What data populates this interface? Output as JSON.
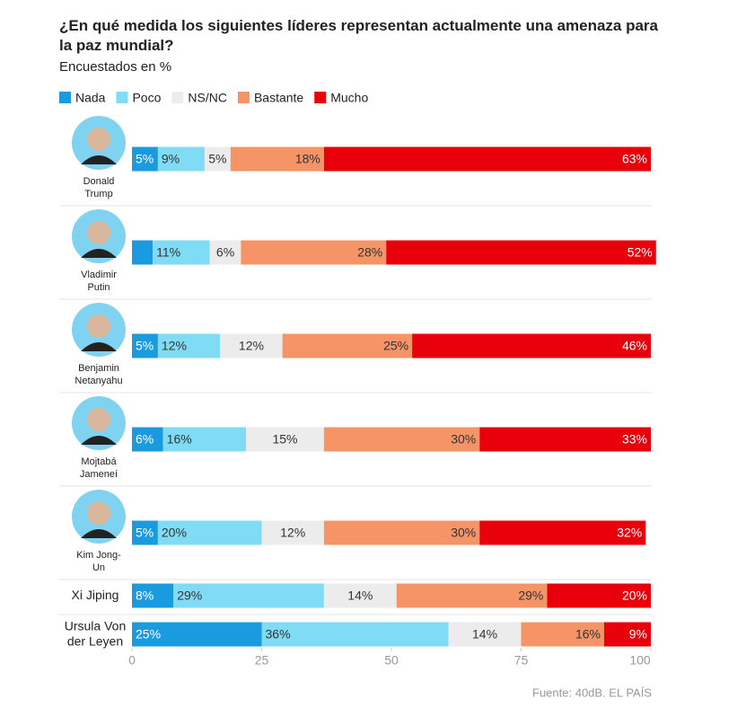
{
  "chart_data": {
    "type": "stacked-bar-horizontal",
    "title": "¿En qué medida los siguientes líderes representan actualmente una amenaza para la paz mundial?",
    "subtitle": "Encuestados en %",
    "source": "Fuente: 40dB. EL PAÍS",
    "categories": [
      "Donald\nTrump",
      "Vladimir\nPutin",
      "Benjamin\nNetanyahu",
      "Mojtabá\nJameneí",
      "Kim Jong-\nUn",
      "Xi Jiping",
      "Ursula Von\nder Leyen"
    ],
    "series": [
      {
        "name": "Nada",
        "color": "#1a9be0",
        "values": [
          5,
          4,
          5,
          6,
          5,
          8,
          25
        ],
        "value_labels": [
          "5%",
          null,
          "5%",
          "6%",
          "5%",
          "8%",
          "25%"
        ]
      },
      {
        "name": "Poco",
        "color": "#80dbf5",
        "values": [
          9,
          11,
          12,
          16,
          20,
          29,
          36
        ],
        "value_labels": [
          "9%",
          "11%",
          "12%",
          "16%",
          "20%",
          "29%",
          "36%"
        ]
      },
      {
        "name": "NS/NC",
        "color": "#ececec",
        "values": [
          5,
          6,
          12,
          15,
          12,
          14,
          14
        ],
        "value_labels": [
          "5%",
          "6%",
          "12%",
          "15%",
          "12%",
          "14%",
          "14%"
        ]
      },
      {
        "name": "Bastante",
        "color": "#f59467",
        "values": [
          18,
          28,
          25,
          30,
          30,
          29,
          16
        ],
        "value_labels": [
          "18%",
          "28%",
          "25%",
          "30%",
          "30%",
          "29%",
          "16%"
        ]
      },
      {
        "name": "Mucho",
        "color": "#e8000b",
        "values": [
          63,
          52,
          46,
          33,
          32,
          20,
          9
        ],
        "value_labels": [
          "63%",
          "52%",
          "46%",
          "33%",
          "32%",
          "20%",
          "9%"
        ]
      }
    ],
    "xlim": [
      0,
      100
    ],
    "xticks": [
      0,
      25,
      50,
      75,
      100
    ],
    "grid": false
  }
}
